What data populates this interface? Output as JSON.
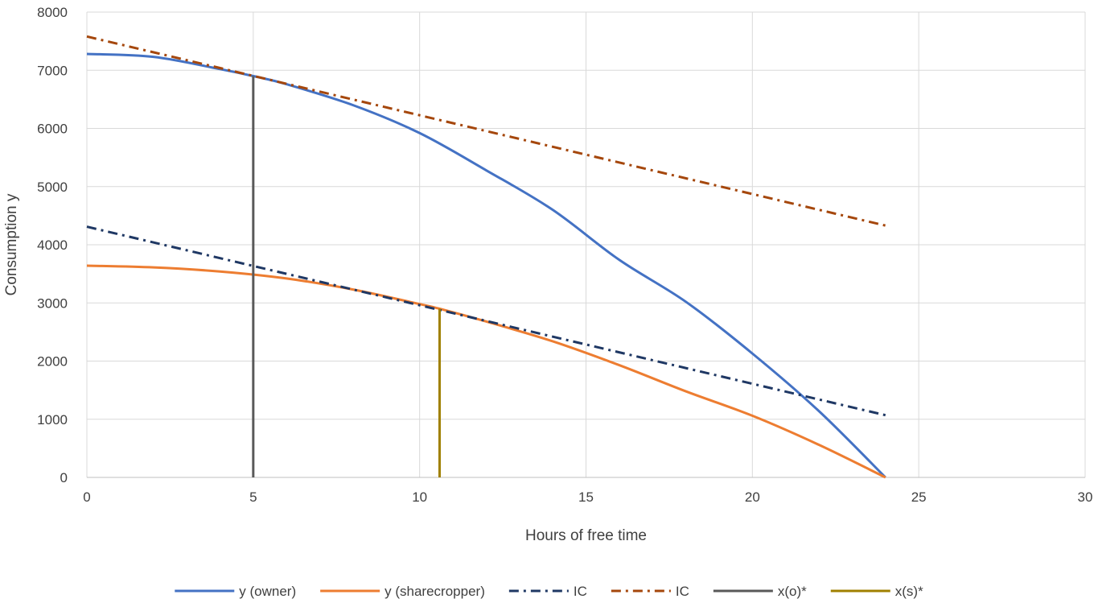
{
  "chart_data": {
    "type": "line",
    "title": "",
    "xlabel": "Hours of free time",
    "ylabel": "Consumption y",
    "xlim": [
      0,
      30
    ],
    "ylim": [
      0,
      8000
    ],
    "x_ticks": [
      0,
      5,
      10,
      15,
      20,
      25,
      30
    ],
    "y_ticks": [
      0,
      1000,
      2000,
      3000,
      4000,
      5000,
      6000,
      7000,
      8000
    ],
    "x_tick_labels": [
      "0",
      "5",
      "10",
      "15",
      "20",
      "25",
      "30"
    ],
    "y_tick_labels": [
      "0",
      "1000",
      "2000",
      "3000",
      "4000",
      "5000",
      "6000",
      "7000",
      "8000"
    ],
    "grid": true,
    "legend_position": "bottom",
    "series": [
      {
        "name": "y (owner)",
        "color": "#4472C4",
        "style": "solid",
        "x": [
          0,
          2,
          4,
          5,
          6,
          8,
          10,
          12,
          14,
          16,
          18,
          20,
          22,
          24
        ],
        "y": [
          7280,
          7230,
          7020,
          6900,
          6760,
          6400,
          5920,
          5280,
          4600,
          3740,
          3020,
          2130,
          1140,
          0
        ]
      },
      {
        "name": "y (sharecropper)",
        "color": "#ED7D31",
        "style": "solid",
        "x": [
          0,
          2,
          4,
          6,
          8,
          10,
          10.6,
          12,
          14,
          16,
          18,
          20,
          22,
          24
        ],
        "y": [
          3640,
          3610,
          3540,
          3420,
          3230,
          2980,
          2900,
          2680,
          2340,
          1930,
          1480,
          1060,
          560,
          0
        ]
      },
      {
        "name": "IC",
        "color": "#1F3864",
        "style": "dashdot",
        "x": [
          0,
          24
        ],
        "y": [
          4310,
          1070
        ]
      },
      {
        "name": "IC",
        "color": "#A5470C",
        "style": "dashdot",
        "x": [
          0,
          24
        ],
        "y": [
          7580,
          4330
        ]
      },
      {
        "name": "x(o)*",
        "color": "#595959",
        "style": "solid",
        "x": [
          5,
          5
        ],
        "y": [
          0,
          6900
        ]
      },
      {
        "name": "x(s)*",
        "color": "#A08000",
        "style": "solid",
        "x": [
          10.6,
          10.6
        ],
        "y": [
          0,
          2900
        ]
      }
    ]
  }
}
